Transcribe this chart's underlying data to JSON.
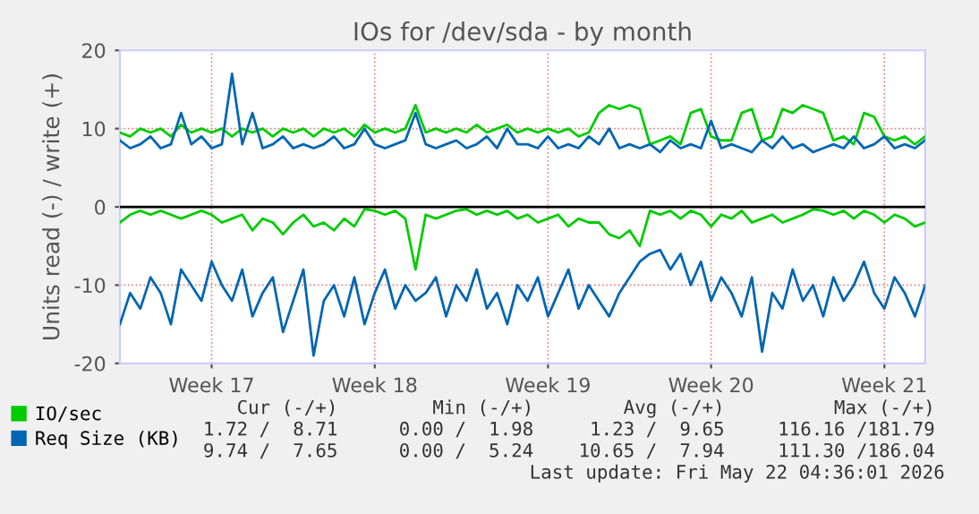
{
  "chart_data": {
    "type": "line",
    "title": "IOs for /dev/sda - by month",
    "ylabel": "Units read (-) / write (+)",
    "categories": [
      null,
      null,
      null,
      null,
      null,
      null,
      null,
      null,
      null,
      "Week 17",
      null,
      null,
      null,
      null,
      null,
      null,
      null,
      null,
      null,
      null,
      null,
      null,
      null,
      null,
      null,
      "Week 18",
      null,
      null,
      null,
      null,
      null,
      null,
      null,
      null,
      null,
      null,
      null,
      null,
      null,
      null,
      null,
      null,
      "Week 19",
      null,
      null,
      null,
      null,
      null,
      null,
      null,
      null,
      null,
      null,
      null,
      null,
      null,
      null,
      null,
      "Week 20",
      null,
      null,
      null,
      null,
      null,
      null,
      null,
      null,
      null,
      null,
      null,
      null,
      null,
      null,
      null,
      null,
      "Week 21",
      null,
      null,
      null,
      null
    ],
    "series": [
      {
        "name": "IO/sec",
        "color": "#00cc00",
        "values": [
          9.5,
          9,
          10,
          9.5,
          10,
          9,
          10.5,
          9.5,
          10,
          9.5,
          10,
          9,
          10,
          9.5,
          10,
          9,
          10,
          9.5,
          10,
          9,
          10,
          9.5,
          10,
          9,
          10.5,
          9.5,
          10,
          9.5,
          10,
          13,
          9.5,
          10,
          9.5,
          10,
          9.5,
          10.5,
          9.5,
          10,
          10.5,
          9.5,
          10,
          9.5,
          10,
          9.5,
          10,
          9,
          9.5,
          12,
          13,
          12.5,
          13,
          12.5,
          8,
          8.5,
          9,
          8,
          12,
          12.5,
          9,
          8.5,
          8.5,
          12,
          12.5,
          8.5,
          9,
          12.5,
          12,
          13,
          12.5,
          12,
          8.5,
          9,
          8,
          12,
          11.5,
          9,
          8.5,
          9,
          8,
          9
        ]
      },
      {
        "color": "#00cc00",
        "values": [
          -2,
          -1,
          -0.5,
          -1,
          -0.5,
          -1,
          -1.5,
          -1,
          -0.5,
          -1,
          -2,
          -1.5,
          -1,
          -3,
          -1.5,
          -2,
          -3.5,
          -2,
          -1,
          -2.5,
          -2,
          -3,
          -1.5,
          -2.5,
          -0.3,
          -0.5,
          -1,
          -0.5,
          -1.5,
          -8,
          -1,
          -1.5,
          -1,
          -0.5,
          -0.3,
          -1,
          -0.5,
          -1,
          -0.5,
          -1.5,
          -1,
          -2,
          -1.5,
          -1,
          -2.5,
          -1.5,
          -2,
          -2,
          -3.5,
          -4,
          -3,
          -5,
          -0.5,
          -1,
          -0.5,
          -1.5,
          -0.5,
          -1,
          -2.5,
          -1,
          -1.5,
          -0.5,
          -2,
          -1.5,
          -1,
          -2,
          -1.5,
          -1,
          -0.3,
          -0.5,
          -1,
          -0.5,
          -1.5,
          -0.5,
          -1,
          -2,
          -1,
          -1.5,
          -2.5,
          -2
        ]
      },
      {
        "name": "Req Size (KB)",
        "color": "#0066b3",
        "values": [
          8.5,
          7.5,
          8,
          9,
          7.5,
          8,
          12,
          8,
          9,
          7.5,
          8,
          17,
          8,
          12,
          7.5,
          8,
          9,
          7.5,
          8,
          7.5,
          8,
          9,
          7.5,
          8,
          10,
          8,
          7.5,
          8,
          8.5,
          12,
          8,
          7.5,
          8,
          8.5,
          7.5,
          8,
          9,
          7.5,
          10,
          8,
          8,
          7.5,
          9,
          7.5,
          8,
          7.5,
          9,
          8,
          10,
          7.5,
          8,
          7.5,
          8,
          7,
          8.5,
          7.5,
          8,
          7.5,
          11,
          7.5,
          8,
          7.5,
          7,
          8.5,
          7.5,
          9,
          7.5,
          8,
          7,
          7.5,
          8,
          7.5,
          9,
          7.5,
          8,
          9,
          7.5,
          8,
          7.5,
          8.5
        ]
      },
      {
        "color": "#0066b3",
        "values": [
          -15,
          -11,
          -13,
          -9,
          -11,
          -15,
          -8,
          -10,
          -12,
          -7,
          -10,
          -12,
          -8,
          -14,
          -11,
          -9,
          -16,
          -12,
          -8,
          -19,
          -12,
          -10,
          -14,
          -9,
          -15,
          -11,
          -8,
          -13,
          -10,
          -12,
          -11,
          -9,
          -14,
          -10,
          -12,
          -8,
          -13,
          -11,
          -15,
          -10,
          -12,
          -9,
          -14,
          -11,
          -8,
          -13,
          -10,
          -12,
          -14,
          -11,
          -9,
          -7,
          -6,
          -5.5,
          -8,
          -6,
          -10,
          -7,
          -12,
          -9,
          -11,
          -14,
          -9,
          -18.5,
          -11,
          -13,
          -8,
          -12,
          -10,
          -14,
          -9,
          -12,
          -10,
          -7,
          -11,
          -13,
          -9,
          -11,
          -14,
          -10
        ]
      }
    ],
    "ylim": [
      -20,
      20
    ],
    "yticks": [
      -20,
      -10,
      0,
      10,
      20
    ],
    "ref_lines": [
      {
        "axis": "y",
        "value": 0,
        "color": "#000000"
      }
    ],
    "grid": true,
    "legend": "bottom",
    "line_style": "solid",
    "marker": "none",
    "annotations": [
      "Cur (-/+)",
      "Min (-/+)",
      "Avg (-/+)",
      "Max (-/+)",
      "1.72 /  8.71",
      "0.00 /  1.98",
      "1.23 /  9.65",
      "116.16 /181.79",
      "9.74 /  7.65",
      "0.00 /  5.24",
      "10.65 /  7.94",
      "111.30 /186.04",
      "Last update: Fri May 22 04:36:01 2026"
    ]
  }
}
